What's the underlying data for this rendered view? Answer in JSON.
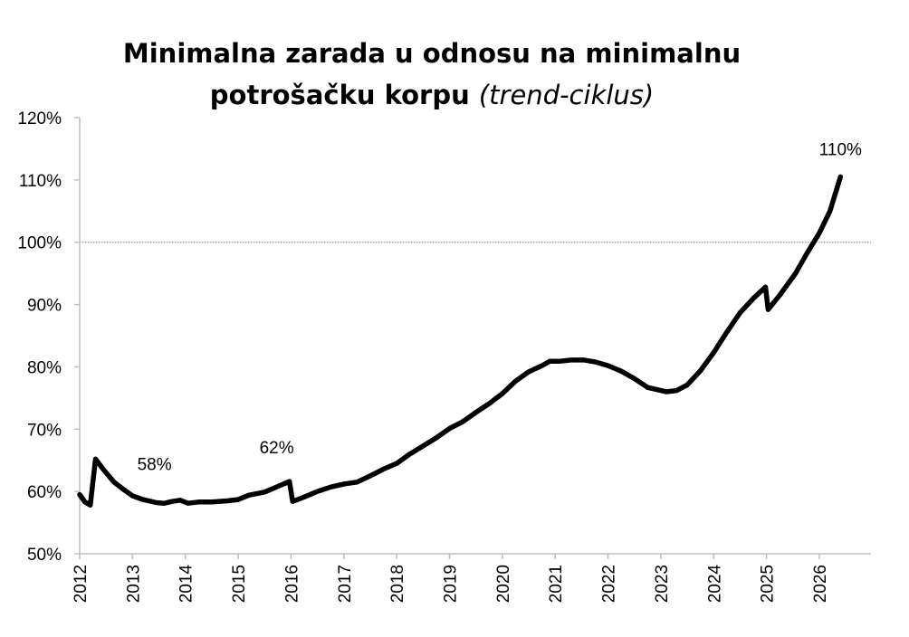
{
  "chart_data": {
    "type": "line",
    "title_main": "Minimalna zarada u odnosu na minimalnu",
    "title_line2": "potrošačku korpu",
    "title_sub": "(trend-ciklus)",
    "ylim": [
      50,
      120
    ],
    "yticks": [
      50,
      60,
      70,
      80,
      90,
      100,
      110,
      120
    ],
    "ytick_labels": [
      "50%",
      "60%",
      "70%",
      "80%",
      "90%",
      "100%",
      "110%",
      "120%"
    ],
    "xlim": [
      2012,
      2026.45
    ],
    "xticks": [
      2012,
      2013,
      2014,
      2015,
      2016,
      2017,
      2018,
      2019,
      2020,
      2021,
      2022,
      2023,
      2024,
      2025,
      2026
    ],
    "xtick_labels": [
      "2012",
      "2013",
      "2014",
      "2015",
      "2016",
      "2017",
      "2018",
      "2019",
      "2020",
      "2021",
      "2022",
      "2023",
      "2024",
      "2025",
      "2026"
    ],
    "reference_line": 100,
    "series": [
      {
        "x": [
          2012.0,
          2012.1,
          2012.2,
          2012.3,
          2012.45,
          2012.65,
          2012.85,
          2013.0,
          2013.2,
          2013.45,
          2013.6,
          2013.75,
          2013.9,
          2014.05,
          2014.25,
          2014.5,
          2014.8,
          2015.0,
          2015.2,
          2015.5,
          2015.75,
          2015.97,
          2016.03,
          2016.25,
          2016.5,
          2016.75,
          2017.0,
          2017.25,
          2017.5,
          2017.75,
          2018.0,
          2018.25,
          2018.5,
          2018.75,
          2019.0,
          2019.25,
          2019.5,
          2019.75,
          2020.0,
          2020.25,
          2020.5,
          2020.75,
          2020.9,
          2021.1,
          2021.3,
          2021.55,
          2021.75,
          2022.0,
          2022.25,
          2022.5,
          2022.75,
          2023.0,
          2023.1,
          2023.3,
          2023.5,
          2023.75,
          2024.0,
          2024.25,
          2024.5,
          2024.75,
          2024.98,
          2025.03,
          2025.25,
          2025.55,
          2025.75,
          2026.0,
          2026.2,
          2026.4
        ],
        "y": [
          59.5,
          58.3,
          57.8,
          65.2,
          63.5,
          61.5,
          60.2,
          59.3,
          58.7,
          58.2,
          58.1,
          58.4,
          58.6,
          58.1,
          58.3,
          58.3,
          58.5,
          58.7,
          59.4,
          59.9,
          60.8,
          61.6,
          58.4,
          59.1,
          60.0,
          60.7,
          61.2,
          61.5,
          62.5,
          63.6,
          64.5,
          66.0,
          67.3,
          68.6,
          70.1,
          71.2,
          72.7,
          74.1,
          75.7,
          77.7,
          79.2,
          80.2,
          80.9,
          80.9,
          81.1,
          81.1,
          80.8,
          80.2,
          79.3,
          78.1,
          76.7,
          76.2,
          76.0,
          76.2,
          77.1,
          79.4,
          82.3,
          85.6,
          88.7,
          91.0,
          92.8,
          89.2,
          91.5,
          95.0,
          98.0,
          101.5,
          105.0,
          110.5
        ]
      }
    ],
    "annotations": [
      {
        "text": "58%",
        "x": 2013.45,
        "y": 58.2
      },
      {
        "text": "62%",
        "x": 2015.9,
        "y": 61.6
      },
      {
        "text": "110%",
        "x": 2026.4,
        "y": 110.5
      }
    ]
  }
}
